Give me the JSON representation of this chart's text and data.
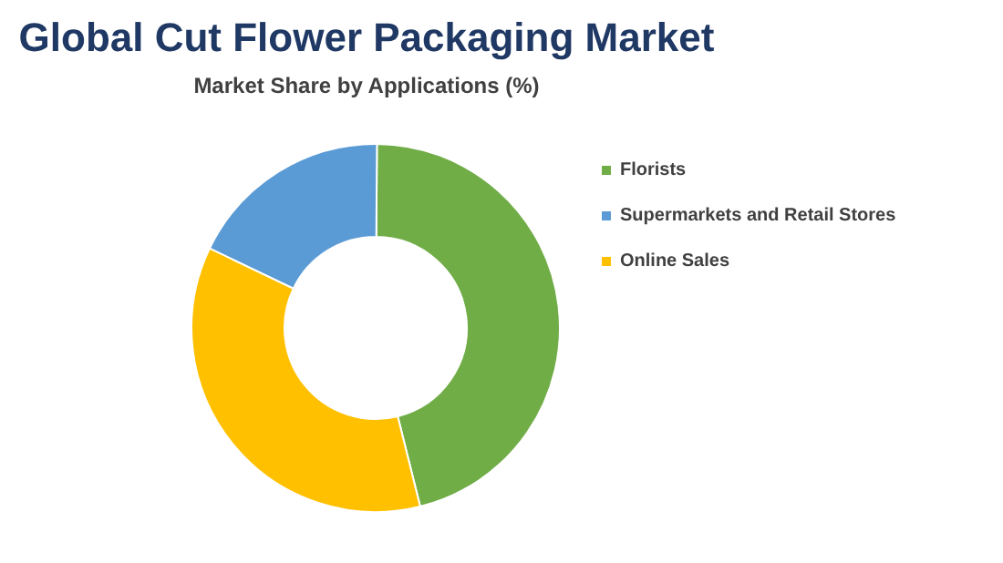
{
  "chart_data": {
    "type": "donut",
    "title": "Global Cut Flower Packaging Market",
    "subtitle": "Market Share by Applications (%)",
    "categories": [
      "Florists",
      "Supermarkets and Retail Stores",
      "Online Sales"
    ],
    "values": [
      46,
      18,
      36
    ],
    "colors": [
      "#70ad47",
      "#5b9bd5",
      "#ffc000"
    ],
    "legend": "right"
  }
}
